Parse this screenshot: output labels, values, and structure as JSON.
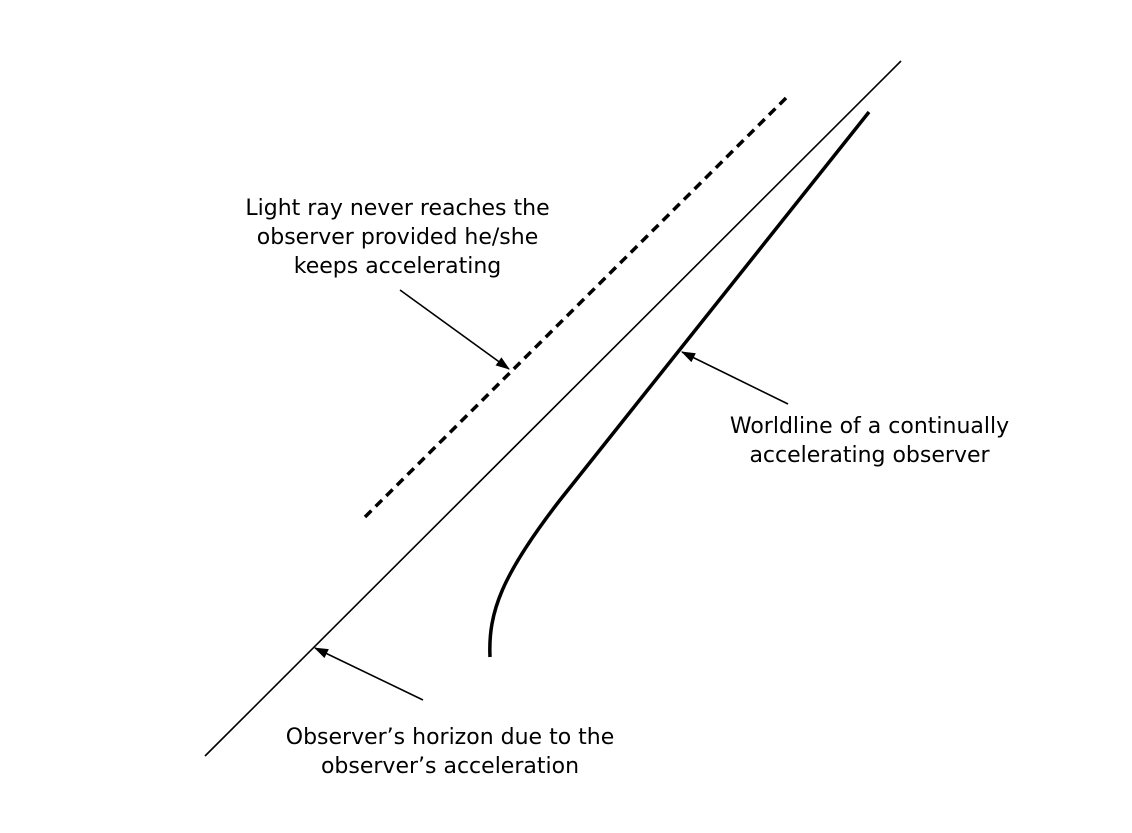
{
  "labels": {
    "light_ray": {
      "lines": [
        "Light ray never reaches the",
        "observer provided he/she",
        "keeps accelerating"
      ]
    },
    "worldline": {
      "lines": [
        "Worldline of a continually",
        "accelerating observer"
      ]
    },
    "horizon": {
      "lines": [
        "Observer’s horizon due to the",
        "observer’s acceleration"
      ]
    }
  },
  "colors": {
    "ink": "#000000",
    "background": "#ffffff"
  }
}
